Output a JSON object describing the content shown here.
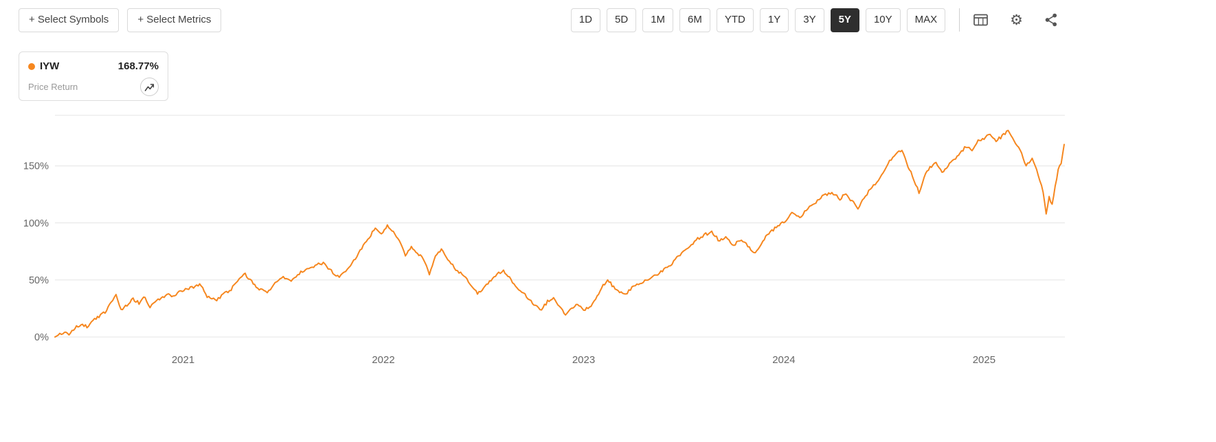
{
  "toolbar": {
    "select_symbols": "+ Select Symbols",
    "select_metrics": "+ Select Metrics",
    "ranges": [
      "1D",
      "5D",
      "1M",
      "6M",
      "YTD",
      "1Y",
      "3Y",
      "5Y",
      "10Y",
      "MAX"
    ],
    "active_range": "5Y",
    "icons": [
      "table-icon",
      "settings-icon",
      "share-icon"
    ]
  },
  "legend": {
    "symbol": "IYW",
    "value": "168.77%",
    "metric": "Price Return",
    "series_color": "#F6871F"
  },
  "colors": {
    "accent": "#F6871F",
    "active_button_bg": "#2E2E2E",
    "border": "#D9D9D9",
    "grid": "#E4E4E4",
    "axis_text": "#666666"
  },
  "chart_data": {
    "type": "line",
    "title": "",
    "xlabel": "",
    "ylabel": "Price Return (%)",
    "unit": "%",
    "grid": true,
    "legend_position": "top-left-card",
    "x_range": [
      2020.36,
      2025.4
    ],
    "y_range_visible": [
      -8,
      195
    ],
    "y_axis_ticks": [
      0,
      50,
      100,
      150
    ],
    "x_axis_ticks": [
      2021,
      2022,
      2023,
      2024,
      2025
    ],
    "series": [
      {
        "name": "IYW Price Return",
        "color": "#F6871F",
        "final_value": 168.77,
        "points": [
          [
            2020.36,
            0
          ],
          [
            2020.4,
            4
          ],
          [
            2020.43,
            3
          ],
          [
            2020.46,
            8
          ],
          [
            2020.49,
            11
          ],
          [
            2020.52,
            9
          ],
          [
            2020.55,
            14
          ],
          [
            2020.58,
            18
          ],
          [
            2020.61,
            22
          ],
          [
            2020.64,
            30
          ],
          [
            2020.665,
            38
          ],
          [
            2020.69,
            24
          ],
          [
            2020.72,
            28
          ],
          [
            2020.75,
            33
          ],
          [
            2020.78,
            30
          ],
          [
            2020.81,
            35
          ],
          [
            2020.835,
            26
          ],
          [
            2020.86,
            31
          ],
          [
            2020.89,
            34
          ],
          [
            2020.92,
            37
          ],
          [
            2020.95,
            36
          ],
          [
            2020.98,
            40
          ],
          [
            2021.02,
            42
          ],
          [
            2021.06,
            44
          ],
          [
            2021.09,
            46
          ],
          [
            2021.12,
            36
          ],
          [
            2021.16,
            32
          ],
          [
            2021.2,
            37
          ],
          [
            2021.24,
            42
          ],
          [
            2021.28,
            52
          ],
          [
            2021.31,
            55
          ],
          [
            2021.35,
            47
          ],
          [
            2021.38,
            42
          ],
          [
            2021.42,
            39
          ],
          [
            2021.46,
            48
          ],
          [
            2021.5,
            53
          ],
          [
            2021.54,
            50
          ],
          [
            2021.58,
            56
          ],
          [
            2021.62,
            59
          ],
          [
            2021.66,
            63
          ],
          [
            2021.7,
            65
          ],
          [
            2021.74,
            58
          ],
          [
            2021.78,
            52
          ],
          [
            2021.82,
            60
          ],
          [
            2021.86,
            68
          ],
          [
            2021.9,
            80
          ],
          [
            2021.93,
            88
          ],
          [
            2021.96,
            95
          ],
          [
            2021.99,
            90
          ],
          [
            2022.02,
            97
          ],
          [
            2022.05,
            93
          ],
          [
            2022.08,
            84
          ],
          [
            2022.11,
            71
          ],
          [
            2022.14,
            79
          ],
          [
            2022.17,
            74
          ],
          [
            2022.2,
            68
          ],
          [
            2022.23,
            55
          ],
          [
            2022.26,
            70
          ],
          [
            2022.29,
            77
          ],
          [
            2022.33,
            66
          ],
          [
            2022.37,
            58
          ],
          [
            2022.41,
            52
          ],
          [
            2022.44,
            45
          ],
          [
            2022.47,
            38
          ],
          [
            2022.5,
            42
          ],
          [
            2022.53,
            48
          ],
          [
            2022.56,
            54
          ],
          [
            2022.6,
            58
          ],
          [
            2022.63,
            52
          ],
          [
            2022.66,
            44
          ],
          [
            2022.7,
            38
          ],
          [
            2022.73,
            33
          ],
          [
            2022.76,
            27
          ],
          [
            2022.79,
            24
          ],
          [
            2022.82,
            31
          ],
          [
            2022.85,
            34
          ],
          [
            2022.88,
            26
          ],
          [
            2022.91,
            20
          ],
          [
            2022.94,
            26
          ],
          [
            2022.97,
            28
          ],
          [
            2023.0,
            24
          ],
          [
            2023.03,
            26
          ],
          [
            2023.06,
            33
          ],
          [
            2023.09,
            43
          ],
          [
            2023.12,
            50
          ],
          [
            2023.15,
            44
          ],
          [
            2023.18,
            40
          ],
          [
            2023.21,
            37
          ],
          [
            2023.25,
            45
          ],
          [
            2023.29,
            48
          ],
          [
            2023.33,
            52
          ],
          [
            2023.37,
            55
          ],
          [
            2023.41,
            60
          ],
          [
            2023.45,
            66
          ],
          [
            2023.49,
            74
          ],
          [
            2023.53,
            80
          ],
          [
            2023.57,
            86
          ],
          [
            2023.61,
            90
          ],
          [
            2023.64,
            92
          ],
          [
            2023.68,
            84
          ],
          [
            2023.71,
            88
          ],
          [
            2023.75,
            80
          ],
          [
            2023.78,
            85
          ],
          [
            2023.82,
            80
          ],
          [
            2023.85,
            74
          ],
          [
            2023.88,
            78
          ],
          [
            2023.91,
            88
          ],
          [
            2023.94,
            93
          ],
          [
            2023.97,
            97
          ],
          [
            2024.0,
            101
          ],
          [
            2024.04,
            108
          ],
          [
            2024.08,
            105
          ],
          [
            2024.12,
            113
          ],
          [
            2024.16,
            118
          ],
          [
            2024.2,
            124
          ],
          [
            2024.24,
            127
          ],
          [
            2024.28,
            121
          ],
          [
            2024.31,
            126
          ],
          [
            2024.34,
            119
          ],
          [
            2024.37,
            113
          ],
          [
            2024.4,
            122
          ],
          [
            2024.44,
            131
          ],
          [
            2024.48,
            140
          ],
          [
            2024.52,
            152
          ],
          [
            2024.56,
            160
          ],
          [
            2024.59,
            164
          ],
          [
            2024.62,
            150
          ],
          [
            2024.65,
            138
          ],
          [
            2024.675,
            126
          ],
          [
            2024.7,
            140
          ],
          [
            2024.73,
            149
          ],
          [
            2024.76,
            152
          ],
          [
            2024.79,
            144
          ],
          [
            2024.82,
            150
          ],
          [
            2024.85,
            155
          ],
          [
            2024.88,
            161
          ],
          [
            2024.91,
            167
          ],
          [
            2024.94,
            163
          ],
          [
            2024.97,
            172
          ],
          [
            2025.0,
            174
          ],
          [
            2025.03,
            178
          ],
          [
            2025.06,
            172
          ],
          [
            2025.09,
            176
          ],
          [
            2025.12,
            181
          ],
          [
            2025.15,
            172
          ],
          [
            2025.18,
            164
          ],
          [
            2025.21,
            150
          ],
          [
            2025.24,
            156
          ],
          [
            2025.27,
            143
          ],
          [
            2025.295,
            128
          ],
          [
            2025.31,
            108
          ],
          [
            2025.325,
            122
          ],
          [
            2025.34,
            116
          ],
          [
            2025.355,
            132
          ],
          [
            2025.37,
            146
          ],
          [
            2025.385,
            152
          ],
          [
            2025.4,
            168.77
          ]
        ]
      }
    ]
  }
}
